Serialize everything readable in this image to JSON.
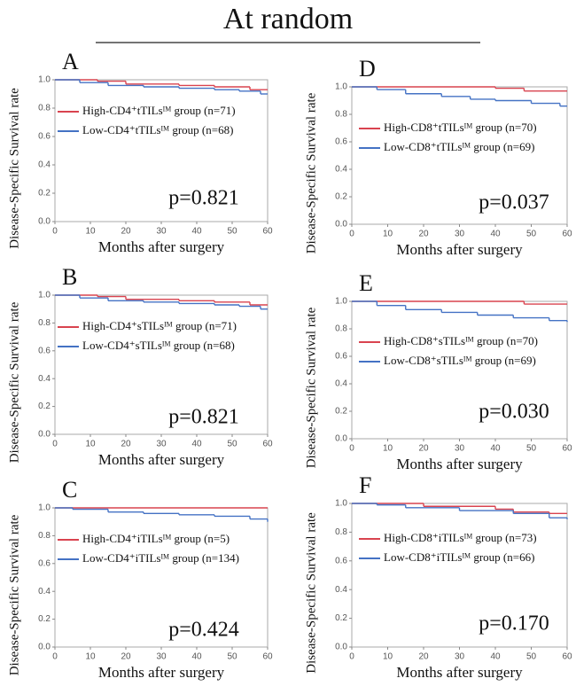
{
  "title": "At random",
  "chart_data": [
    {
      "type": "step",
      "panel": "A",
      "ylabel": "Disease-Specific Survival rate",
      "xlabel": "Months after surgery",
      "annotation": "p=0.821",
      "xlim": [
        0,
        60
      ],
      "xticks": [
        0,
        10,
        20,
        30,
        40,
        50,
        60
      ],
      "ylim": [
        0,
        1
      ],
      "yticks": [
        {
          "value": 0,
          "label": "0.0"
        },
        0.2,
        0.4,
        0.6,
        0.8,
        {
          "value": 1,
          "label": "1.0"
        }
      ],
      "series": [
        {
          "name": "High-CD4⁺tTILsᴵᴹ group (n=71)",
          "color": "#d9434f",
          "x": [
            0,
            12,
            20,
            35,
            45,
            55,
            60
          ],
          "values": [
            1,
            0.99,
            0.97,
            0.96,
            0.95,
            0.93,
            0.93
          ]
        },
        {
          "name": "Low-CD4⁺tTILsᴵᴹ group (n=68)",
          "color": "#4472c4",
          "x": [
            0,
            7,
            15,
            25,
            35,
            45,
            52,
            58,
            60
          ],
          "values": [
            1,
            0.98,
            0.96,
            0.95,
            0.94,
            0.93,
            0.92,
            0.9,
            0.9
          ]
        }
      ]
    },
    {
      "type": "step",
      "panel": "B",
      "ylabel": "Disease-Specific Survival rate",
      "xlabel": "Months after surgery",
      "annotation": "p=0.821",
      "xlim": [
        0,
        60
      ],
      "xticks": [
        0,
        10,
        20,
        30,
        40,
        50,
        60
      ],
      "ylim": [
        0,
        1
      ],
      "yticks": [
        {
          "value": 0,
          "label": "0.0"
        },
        0.2,
        0.4,
        0.6,
        0.8,
        {
          "value": 1,
          "label": "1.0"
        }
      ],
      "series": [
        {
          "name": "High-CD4⁺sTILsᴵᴹ group (n=71)",
          "color": "#d9434f",
          "x": [
            0,
            12,
            20,
            35,
            45,
            55,
            60
          ],
          "values": [
            1,
            0.99,
            0.97,
            0.96,
            0.95,
            0.93,
            0.93
          ]
        },
        {
          "name": "Low-CD4⁺sTILsᴵᴹ group (n=68)",
          "color": "#4472c4",
          "x": [
            0,
            7,
            15,
            25,
            35,
            45,
            52,
            58,
            60
          ],
          "values": [
            1,
            0.98,
            0.96,
            0.95,
            0.94,
            0.93,
            0.92,
            0.9,
            0.9
          ]
        }
      ]
    },
    {
      "type": "step",
      "panel": "C",
      "ylabel": "Disease-Specific Survival rate",
      "xlabel": "Months after surgery",
      "annotation": "p=0.424",
      "xlim": [
        0,
        60
      ],
      "xticks": [
        0,
        10,
        20,
        30,
        40,
        50,
        60
      ],
      "ylim": [
        0,
        1
      ],
      "yticks": [
        {
          "value": 0,
          "label": "0.0"
        },
        0.2,
        0.4,
        0.6,
        0.8,
        {
          "value": 1,
          "label": "1.0"
        }
      ],
      "series": [
        {
          "name": "High-CD4⁺iTILsᴵᴹ group (n=5)",
          "color": "#d9434f",
          "x": [
            0,
            60
          ],
          "values": [
            1,
            1
          ]
        },
        {
          "name": "Low-CD4⁺iTILsᴵᴹ group (n=134)",
          "color": "#4472c4",
          "x": [
            0,
            5,
            15,
            25,
            35,
            45,
            55,
            60
          ],
          "values": [
            1,
            0.99,
            0.97,
            0.96,
            0.95,
            0.94,
            0.92,
            0.9
          ]
        }
      ]
    },
    {
      "type": "step",
      "panel": "D",
      "ylabel": "Disease-Specific Survival rate",
      "xlabel": "Months after surgery",
      "annotation": "p=0.037",
      "xlim": [
        0,
        60
      ],
      "xticks": [
        0,
        10,
        20,
        30,
        40,
        50,
        60
      ],
      "ylim": [
        0,
        1
      ],
      "yticks": [
        {
          "value": 0,
          "label": "0.0"
        },
        0.2,
        0.4,
        0.6,
        0.8,
        {
          "value": 1,
          "label": "1.0"
        }
      ],
      "series": [
        {
          "name": "High-CD8⁺tTILsᴵᴹ group (n=70)",
          "color": "#d9434f",
          "x": [
            0,
            30,
            40,
            48,
            60
          ],
          "values": [
            1,
            1,
            0.99,
            0.97,
            0.97
          ]
        },
        {
          "name": "Low-CD8⁺tTILsᴵᴹ group (n=69)",
          "color": "#4472c4",
          "x": [
            0,
            7,
            15,
            25,
            33,
            40,
            50,
            58,
            60
          ],
          "values": [
            1,
            0.98,
            0.95,
            0.93,
            0.91,
            0.9,
            0.88,
            0.86,
            0.86
          ]
        }
      ]
    },
    {
      "type": "step",
      "panel": "E",
      "ylabel": "Disease-Specific Survival rate",
      "xlabel": "Months after surgery",
      "annotation": "p=0.030",
      "xlim": [
        0,
        60
      ],
      "xticks": [
        0,
        10,
        20,
        30,
        40,
        50,
        60
      ],
      "ylim": [
        0,
        1
      ],
      "yticks": [
        {
          "value": 0,
          "label": "0.0"
        },
        0.2,
        0.4,
        0.6,
        0.8,
        {
          "value": 1,
          "label": "1.0"
        }
      ],
      "series": [
        {
          "name": "High-CD8⁺sTILsᴵᴹ group (n=70)",
          "color": "#d9434f",
          "x": [
            0,
            48,
            60
          ],
          "values": [
            1,
            0.98,
            0.98
          ]
        },
        {
          "name": "Low-CD8⁺sTILsᴵᴹ group (n=69)",
          "color": "#4472c4",
          "x": [
            0,
            7,
            15,
            25,
            35,
            45,
            55,
            60
          ],
          "values": [
            1,
            0.97,
            0.94,
            0.92,
            0.9,
            0.88,
            0.86,
            0.85
          ]
        }
      ]
    },
    {
      "type": "step",
      "panel": "F",
      "ylabel": "Disease-Specific Survival rate",
      "xlabel": "Months after surgery",
      "annotation": "p=0.170",
      "xlim": [
        0,
        60
      ],
      "xticks": [
        0,
        10,
        20,
        30,
        40,
        50,
        60
      ],
      "ylim": [
        0,
        1
      ],
      "yticks": [
        {
          "value": 0,
          "label": "0.0"
        },
        0.2,
        0.4,
        0.6,
        0.8,
        {
          "value": 1,
          "label": "1.0"
        }
      ],
      "series": [
        {
          "name": "High-CD8⁺iTILsᴵᴹ group (n=73)",
          "color": "#d9434f",
          "x": [
            0,
            20,
            40,
            45,
            55,
            60
          ],
          "values": [
            1,
            0.98,
            0.96,
            0.94,
            0.93,
            0.93
          ]
        },
        {
          "name": "Low-CD8⁺iTILsᴵᴹ group (n=66)",
          "color": "#4472c4",
          "x": [
            0,
            7,
            15,
            30,
            45,
            55,
            60
          ],
          "values": [
            1,
            0.99,
            0.97,
            0.95,
            0.93,
            0.9,
            0.89
          ]
        }
      ]
    }
  ]
}
